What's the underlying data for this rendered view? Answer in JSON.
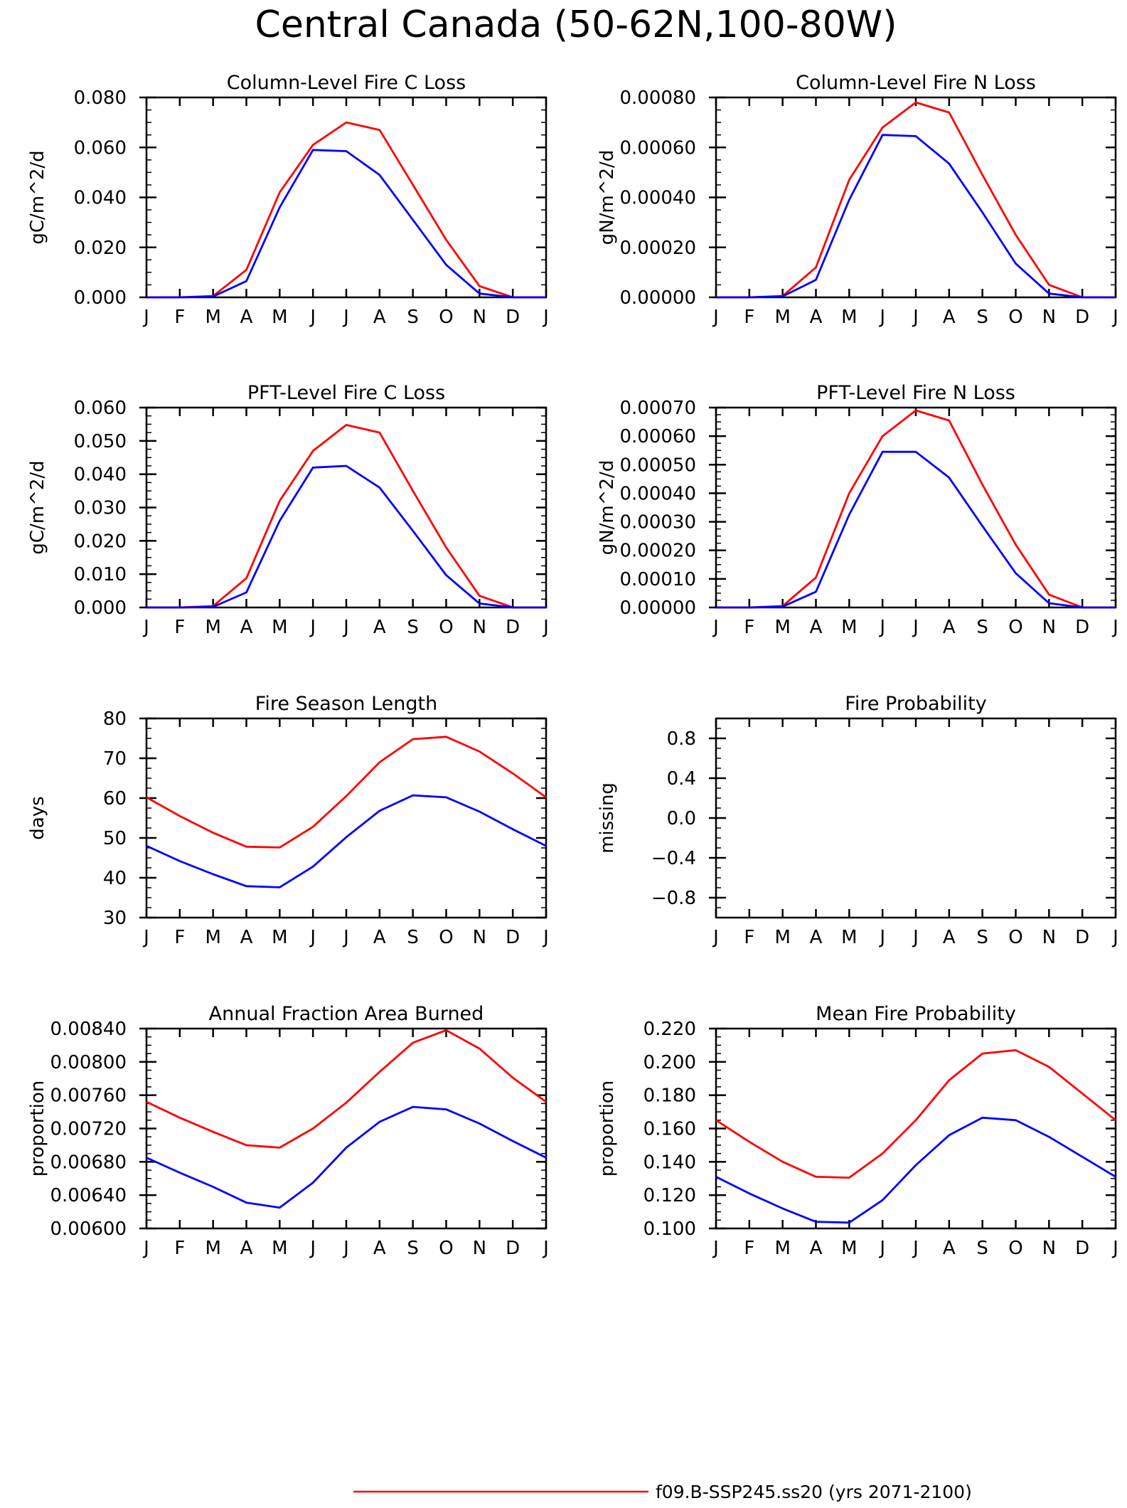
{
  "title": "Central Canada (50-62N,100-80W)",
  "months": [
    "J",
    "F",
    "M",
    "A",
    "M",
    "J",
    "J",
    "A",
    "S",
    "O",
    "N",
    "D",
    "J"
  ],
  "colors": {
    "run1": "#ff0000",
    "run2": "#0000ff"
  },
  "legend": {
    "run1_label": "f09.B-SSP245.ss20 (yrs 2071-2100)"
  },
  "chart_data": [
    {
      "type": "line",
      "title": "Column-Level Fire C Loss",
      "ylabel": "gC/m^2/d",
      "ylim": [
        0,
        0.08
      ],
      "yticks": [
        "0.000",
        "0.020",
        "0.040",
        "0.060",
        "0.080"
      ],
      "series": [
        {
          "color": "#ff0000",
          "values": [
            0.0,
            0.0,
            0.0005,
            0.011,
            0.042,
            0.061,
            0.07,
            0.067,
            0.045,
            0.023,
            0.0045,
            0.0,
            0.0
          ]
        },
        {
          "color": "#0000ff",
          "values": [
            0.0,
            0.0,
            0.0003,
            0.0065,
            0.036,
            0.059,
            0.0585,
            0.049,
            0.031,
            0.013,
            0.0015,
            0.0,
            0.0
          ]
        }
      ]
    },
    {
      "type": "line",
      "title": "Column-Level Fire N Loss",
      "ylabel": "gN/m^2/d",
      "ylim": [
        0,
        0.0008
      ],
      "yticks": [
        "0.00000",
        "0.00020",
        "0.00040",
        "0.00060",
        "0.00080"
      ],
      "series": [
        {
          "color": "#ff0000",
          "values": [
            0.0,
            0.0,
            5e-06,
            0.00012,
            0.00047,
            0.00068,
            0.00078,
            0.00074,
            0.00049,
            0.00025,
            5e-05,
            0.0,
            0.0
          ]
        },
        {
          "color": "#0000ff",
          "values": [
            0.0,
            0.0,
            4e-06,
            7e-05,
            0.00039,
            0.00065,
            0.000645,
            0.000535,
            0.00034,
            0.000135,
            1.5e-05,
            0.0,
            0.0
          ]
        }
      ]
    },
    {
      "type": "line",
      "title": "PFT-Level Fire C Loss",
      "ylabel": "gC/m^2/d",
      "ylim": [
        0,
        0.06
      ],
      "yticks": [
        "0.000",
        "0.010",
        "0.020",
        "0.030",
        "0.040",
        "0.050",
        "0.060"
      ],
      "series": [
        {
          "color": "#ff0000",
          "values": [
            0.0,
            0.0,
            0.0004,
            0.0088,
            0.032,
            0.047,
            0.0548,
            0.0525,
            0.035,
            0.018,
            0.0035,
            0.0,
            0.0
          ]
        },
        {
          "color": "#0000ff",
          "values": [
            0.0,
            0.0,
            0.0002,
            0.0045,
            0.026,
            0.042,
            0.0425,
            0.036,
            0.023,
            0.0097,
            0.0012,
            0.0,
            0.0
          ]
        }
      ]
    },
    {
      "type": "line",
      "title": "PFT-Level Fire N Loss",
      "ylabel": "gN/m^2/d",
      "ylim": [
        0,
        0.0007
      ],
      "yticks": [
        "0.00000",
        "0.00010",
        "0.00020",
        "0.00030",
        "0.00040",
        "0.00050",
        "0.00060",
        "0.00070"
      ],
      "series": [
        {
          "color": "#ff0000",
          "values": [
            0.0,
            0.0,
            5e-06,
            0.000105,
            0.0004,
            0.0006,
            0.00069,
            0.000655,
            0.00043,
            0.00022,
            4.5e-05,
            0.0,
            0.0
          ]
        },
        {
          "color": "#0000ff",
          "values": [
            0.0,
            0.0,
            3e-06,
            5.5e-05,
            0.000325,
            0.000545,
            0.000545,
            0.000455,
            0.000285,
            0.00012,
            1.5e-05,
            0.0,
            0.0
          ]
        }
      ]
    },
    {
      "type": "line",
      "title": "Fire Season Length",
      "ylabel": "days",
      "ylim": [
        30,
        80
      ],
      "yticks": [
        "30",
        "40",
        "50",
        "60",
        "70",
        "80"
      ],
      "series": [
        {
          "color": "#ff0000",
          "values": [
            60.2,
            55.5,
            51.3,
            47.8,
            47.6,
            52.8,
            60.5,
            69.0,
            74.8,
            75.4,
            71.7,
            66.2,
            60.2
          ]
        },
        {
          "color": "#0000ff",
          "values": [
            48.0,
            44.2,
            40.9,
            37.9,
            37.6,
            42.8,
            50.2,
            56.8,
            60.7,
            60.2,
            56.6,
            52.2,
            48.0
          ]
        }
      ]
    },
    {
      "type": "line",
      "title": "Fire Probability",
      "ylabel": "missing",
      "ylim": [
        -1,
        1
      ],
      "yticks": [
        "-0.8",
        "-0.4",
        "0.0",
        "0.4",
        "0.8"
      ],
      "series": []
    },
    {
      "type": "line",
      "title": "Annual Fraction Area Burned",
      "ylabel": "proportion",
      "ylim": [
        0.006,
        0.0084
      ],
      "yticks": [
        "0.00600",
        "0.00640",
        "0.00680",
        "0.00720",
        "0.00760",
        "0.00800",
        "0.00840"
      ],
      "series": [
        {
          "color": "#ff0000",
          "values": [
            0.00752,
            0.00733,
            0.00716,
            0.007,
            0.00697,
            0.0072,
            0.00751,
            0.00788,
            0.00823,
            0.00838,
            0.00816,
            0.00781,
            0.00752
          ]
        },
        {
          "color": "#0000ff",
          "values": [
            0.00685,
            0.00667,
            0.0065,
            0.00631,
            0.00625,
            0.00655,
            0.00697,
            0.00728,
            0.00746,
            0.00743,
            0.00726,
            0.00705,
            0.00685
          ]
        }
      ]
    },
    {
      "type": "line",
      "title": "Mean Fire Probability",
      "ylabel": "proportion",
      "ylim": [
        0.1,
        0.22
      ],
      "yticks": [
        "0.100",
        "0.120",
        "0.140",
        "0.160",
        "0.180",
        "0.200",
        "0.220"
      ],
      "series": [
        {
          "color": "#ff0000",
          "values": [
            0.165,
            0.152,
            0.14,
            0.131,
            0.1305,
            0.145,
            0.165,
            0.189,
            0.205,
            0.207,
            0.197,
            0.181,
            0.165
          ]
        },
        {
          "color": "#0000ff",
          "values": [
            0.131,
            0.121,
            0.112,
            0.104,
            0.1035,
            0.117,
            0.138,
            0.156,
            0.1665,
            0.165,
            0.155,
            0.143,
            0.131
          ]
        }
      ]
    }
  ]
}
